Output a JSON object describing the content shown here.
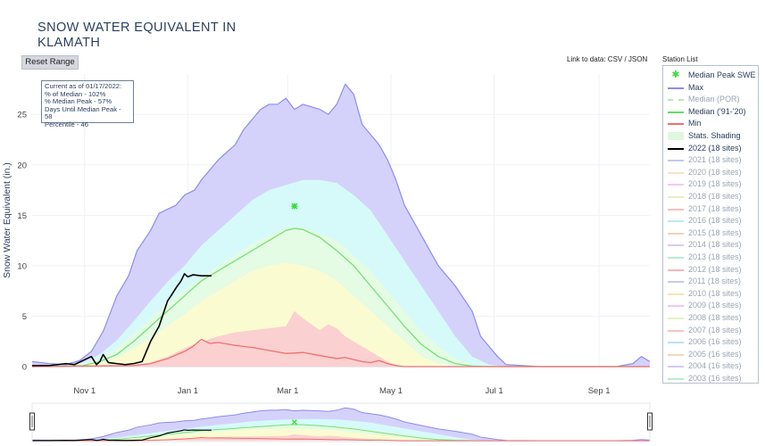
{
  "title_line1": "SNOW WATER EQUIVALENT IN",
  "title_line2": "KLAMATH",
  "reset_label": "Reset Range",
  "link_label": "Link to data: CSV / JSON",
  "station_list_label": "Station List",
  "info": {
    "line1": "Current as of 01/17/2022:",
    "line2": "% of Median - 102%",
    "line3": "% Median Peak - 57%",
    "line4": "Days Until Median Peak - 58",
    "line5": "Percentile - 46"
  },
  "legend": [
    {
      "label": "Median Peak SWE",
      "color": "#3ddc3d",
      "kind": "marker",
      "faded": false
    },
    {
      "label": "Max",
      "color": "#8c8cf0",
      "kind": "line",
      "faded": false
    },
    {
      "label": "Median (POR)",
      "color": "#b8e8b8",
      "kind": "dash",
      "faded": true
    },
    {
      "label": "Median ('91-'20)",
      "color": "#66dd66",
      "kind": "line",
      "faded": false
    },
    {
      "label": "Min",
      "color": "#f07070",
      "kind": "line",
      "faded": false
    },
    {
      "label": "Stats. Shading",
      "color": "#dff7df",
      "kind": "band",
      "faded": false
    },
    {
      "label": "2022 (18 sites)",
      "color": "#000000",
      "kind": "thick",
      "faded": false
    },
    {
      "label": "2021 (18 sites)",
      "color": "#c5c5f5",
      "kind": "line",
      "faded": true
    },
    {
      "label": "2020 (18 sites)",
      "color": "#f7e3c0",
      "kind": "line",
      "faded": true
    },
    {
      "label": "2019 (18 sites)",
      "color": "#f2c9f2",
      "kind": "line",
      "faded": true
    },
    {
      "label": "2018 (18 sites)",
      "color": "#e4f2c4",
      "kind": "line",
      "faded": true
    },
    {
      "label": "2017 (18 sites)",
      "color": "#f5c0c0",
      "kind": "line",
      "faded": true
    },
    {
      "label": "2016 (18 sites)",
      "color": "#b8ecef",
      "kind": "line",
      "faded": true
    },
    {
      "label": "2015 (18 sites)",
      "color": "#f5d2b8",
      "kind": "line",
      "faded": true
    },
    {
      "label": "2014 (18 sites)",
      "color": "#dcc8f0",
      "kind": "line",
      "faded": true
    },
    {
      "label": "2013 (18 sites)",
      "color": "#b8ecd8",
      "kind": "line",
      "faded": true
    },
    {
      "label": "2012 (18 sites)",
      "color": "#f5b8b8",
      "kind": "line",
      "faded": true
    },
    {
      "label": "2011 (18 sites)",
      "color": "#c8c8f2",
      "kind": "line",
      "faded": true
    },
    {
      "label": "2010 (18 sites)",
      "color": "#f5e6b0",
      "kind": "line",
      "faded": true
    },
    {
      "label": "2009 (18 sites)",
      "color": "#f2c8ec",
      "kind": "line",
      "faded": true
    },
    {
      "label": "2008 (18 sites)",
      "color": "#e0f2c0",
      "kind": "line",
      "faded": true
    },
    {
      "label": "2007 (18 sites)",
      "color": "#f5c4c0",
      "kind": "line",
      "faded": true
    },
    {
      "label": "2006 (16 sites)",
      "color": "#b8e2f2",
      "kind": "line",
      "faded": true
    },
    {
      "label": "2005 (16 sites)",
      "color": "#f5d8b8",
      "kind": "line",
      "faded": true
    },
    {
      "label": "2004 (16 sites)",
      "color": "#d8c8f2",
      "kind": "line",
      "faded": true
    },
    {
      "label": "2003 (16 sites)",
      "color": "#b8ecd4",
      "kind": "line",
      "faded": true
    }
  ],
  "colors": {
    "max_band": "#d4d2fa",
    "max_line": "#8c8cf0",
    "cyan_band": "#d6fafa",
    "green_band": "#e4fbe4",
    "yellow_band": "#fbfbd2",
    "red_band": "#fbd0d0",
    "median_line": "#77e077",
    "min_line": "#f07070",
    "current_line": "#000000",
    "peak_marker": "#33dd33"
  },
  "chart_data": {
    "type": "area",
    "title": "SNOW WATER EQUIVALENT IN KLAMATH",
    "xlabel": "",
    "ylabel": "Snow Water Equivalent (in.)",
    "ylim": [
      0,
      29
    ],
    "yticks": [
      0,
      5,
      10,
      15,
      20,
      25
    ],
    "x_unit": "day of water year (Oct 1 = 0)",
    "xlim": [
      0,
      365
    ],
    "xticks": [
      {
        "label": "Nov 1",
        "day": 31
      },
      {
        "label": "Jan 1",
        "day": 92
      },
      {
        "label": "Mar 1",
        "day": 151
      },
      {
        "label": "May 1",
        "day": 212
      },
      {
        "label": "Jul 1",
        "day": 273
      },
      {
        "label": "Sep 1",
        "day": 335
      }
    ],
    "series": [
      {
        "name": "Max",
        "x": [
          0,
          10,
          20,
          28,
          35,
          42,
          50,
          57,
          62,
          70,
          75,
          80,
          85,
          90,
          96,
          100,
          105,
          110,
          120,
          125,
          130,
          135,
          140,
          145,
          150,
          155,
          160,
          170,
          175,
          180,
          185,
          190,
          195,
          200,
          205,
          210,
          215,
          220,
          230,
          240,
          250,
          260,
          265,
          270,
          275,
          280,
          300,
          345,
          355,
          360,
          365
        ],
        "y": [
          0.5,
          0.3,
          0.2,
          0.6,
          1.5,
          3.5,
          7.0,
          9.0,
          11.5,
          13.5,
          15.2,
          15.6,
          16.0,
          17.0,
          17.5,
          18.5,
          19.5,
          20.5,
          22.0,
          23.5,
          24.5,
          25.5,
          26.0,
          26.0,
          26.6,
          25.5,
          26.0,
          25.5,
          25.0,
          26.0,
          28.0,
          27.0,
          24.0,
          23.0,
          22.0,
          20.5,
          18.5,
          16.0,
          13.0,
          10.0,
          8.0,
          5.5,
          3.0,
          2.0,
          1.0,
          0.2,
          0.0,
          0.0,
          0.3,
          1.0,
          0.5
        ]
      },
      {
        "name": "Stats upper",
        "x": [
          0,
          20,
          30,
          40,
          50,
          60,
          70,
          80,
          90,
          100,
          110,
          120,
          130,
          140,
          150,
          160,
          170,
          180,
          190,
          200,
          210,
          220,
          230,
          240,
          250,
          260,
          270,
          280,
          365
        ],
        "y": [
          0,
          0.1,
          0.4,
          1.2,
          2.6,
          4.5,
          6.5,
          8.4,
          10.0,
          12.0,
          13.5,
          15.0,
          16.5,
          17.5,
          18.0,
          18.5,
          18.5,
          18.2,
          17.0,
          15.5,
          13.0,
          10.5,
          8.0,
          5.5,
          3.0,
          1.0,
          0.2,
          0,
          0
        ]
      },
      {
        "name": "Percentile 70",
        "x": [
          0,
          30,
          40,
          50,
          60,
          70,
          80,
          90,
          100,
          110,
          120,
          130,
          140,
          150,
          160,
          170,
          180,
          190,
          200,
          210,
          220,
          230,
          240,
          250,
          260,
          265,
          365
        ],
        "y": [
          0,
          0.2,
          0.8,
          1.8,
          3.2,
          4.8,
          6.3,
          7.6,
          8.8,
          10.0,
          11.0,
          12.2,
          13.0,
          13.8,
          13.8,
          13.2,
          12.5,
          11.0,
          9.5,
          7.5,
          5.5,
          3.5,
          2.0,
          0.8,
          0.1,
          0,
          0
        ]
      },
      {
        "name": "Percentile 30",
        "x": [
          0,
          40,
          50,
          60,
          70,
          80,
          90,
          100,
          110,
          120,
          130,
          140,
          150,
          160,
          170,
          180,
          190,
          200,
          210,
          220,
          230,
          240,
          250,
          365
        ],
        "y": [
          0,
          0.3,
          0.9,
          1.8,
          2.8,
          4.0,
          5.2,
          6.5,
          7.5,
          8.5,
          9.5,
          10.0,
          10.3,
          10.0,
          9.5,
          8.5,
          7.0,
          5.5,
          4.0,
          2.5,
          1.0,
          0.3,
          0,
          0
        ]
      },
      {
        "name": "Min band",
        "x": [
          0,
          60,
          70,
          80,
          90,
          100,
          110,
          120,
          130,
          140,
          150,
          155,
          160,
          165,
          170,
          175,
          180,
          185,
          190,
          195,
          200,
          205,
          210,
          215,
          220,
          365
        ],
        "y": [
          0,
          0.2,
          0.4,
          1.0,
          1.8,
          2.5,
          3.0,
          3.4,
          3.6,
          3.8,
          4.0,
          5.5,
          4.8,
          4.2,
          3.6,
          4.2,
          3.8,
          3.0,
          2.5,
          2.0,
          1.5,
          1.0,
          0.5,
          0.2,
          0,
          0
        ]
      },
      {
        "name": "Median ('91-'20)",
        "x": [
          0,
          30,
          40,
          50,
          60,
          70,
          80,
          90,
          100,
          110,
          120,
          130,
          140,
          150,
          155,
          160,
          170,
          180,
          190,
          200,
          210,
          220,
          230,
          240,
          250,
          260,
          270,
          365
        ],
        "y": [
          0,
          0.1,
          0.5,
          1.2,
          2.5,
          4.0,
          5.5,
          7.0,
          8.5,
          9.5,
          10.5,
          11.5,
          12.5,
          13.5,
          13.7,
          13.6,
          12.8,
          11.5,
          10.0,
          8.0,
          6.0,
          4.0,
          2.2,
          1.0,
          0.3,
          0.05,
          0,
          0
        ]
      },
      {
        "name": "Min",
        "x": [
          0,
          60,
          70,
          80,
          90,
          95,
          100,
          105,
          110,
          120,
          130,
          140,
          150,
          160,
          170,
          180,
          185,
          190,
          195,
          200,
          205,
          210,
          215,
          220,
          365
        ],
        "y": [
          0,
          0.1,
          0.3,
          0.8,
          1.5,
          2.0,
          2.7,
          2.3,
          2.4,
          2.1,
          1.9,
          1.6,
          1.3,
          1.4,
          1.1,
          0.8,
          0.9,
          0.7,
          0.5,
          0.4,
          0.6,
          0.3,
          0.1,
          0,
          0
        ]
      },
      {
        "name": "2022 (18 sites)",
        "x": [
          0,
          10,
          20,
          25,
          30,
          35,
          38,
          40,
          42,
          45,
          50,
          55,
          60,
          65,
          70,
          75,
          80,
          82,
          85,
          88,
          90,
          92,
          95,
          100,
          103,
          106
        ],
        "y": [
          0.1,
          0.1,
          0.3,
          0.2,
          0.6,
          1.0,
          0.2,
          0.5,
          1.2,
          0.4,
          0.3,
          0.2,
          0.3,
          0.5,
          2.5,
          4.0,
          6.5,
          7.0,
          7.8,
          8.5,
          9.2,
          8.9,
          9.1,
          9.0,
          9.0,
          9.0
        ]
      }
    ],
    "median_peak": {
      "name": "Median Peak SWE",
      "x": 155,
      "y": 15.9
    }
  }
}
